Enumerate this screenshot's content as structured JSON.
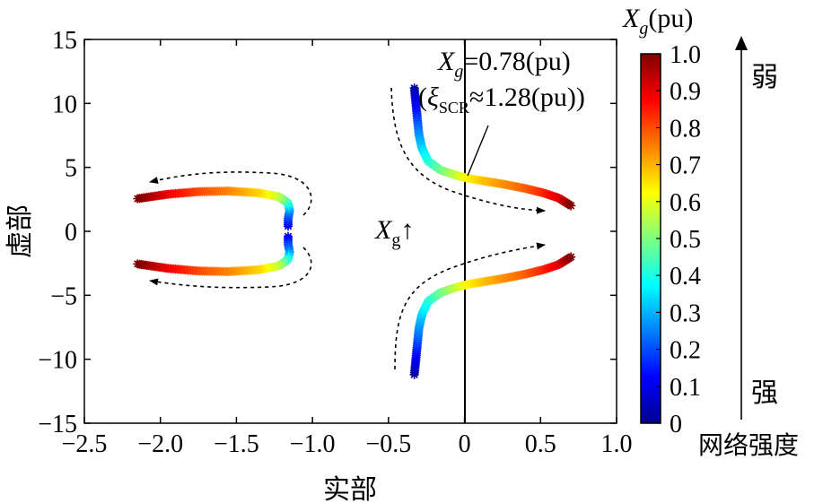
{
  "chart_data": {
    "type": "scatter",
    "xlabel": "实部",
    "ylabel": "虚部",
    "xlim": [
      -2.5,
      1.0
    ],
    "ylim": [
      -15,
      15
    ],
    "x_ticks": [
      {
        "v": -2.5,
        "label": "−2.5"
      },
      {
        "v": -2.0,
        "label": "−2.0"
      },
      {
        "v": -1.5,
        "label": "−1.5"
      },
      {
        "v": -1.0,
        "label": "−1.0"
      },
      {
        "v": -0.5,
        "label": "−0.5"
      },
      {
        "v": 0.0,
        "label": "0"
      },
      {
        "v": 0.5,
        "label": "0.5"
      },
      {
        "v": 1.0,
        "label": "1.0"
      }
    ],
    "y_ticks": [
      {
        "v": 15,
        "label": "15"
      },
      {
        "v": 10,
        "label": "10"
      },
      {
        "v": 5,
        "label": "5"
      },
      {
        "v": 0,
        "label": "0"
      },
      {
        "v": -5,
        "label": "−5"
      },
      {
        "v": -10,
        "label": "−10"
      },
      {
        "v": -15,
        "label": "−15"
      }
    ],
    "series": [
      {
        "name": "right-upper",
        "points": [
          [
            -0.33,
            11.2,
            0.02
          ],
          [
            -0.32,
            10.0,
            0.1
          ],
          [
            -0.31,
            8.8,
            0.18
          ],
          [
            -0.3,
            7.6,
            0.26
          ],
          [
            -0.28,
            6.5,
            0.33
          ],
          [
            -0.24,
            5.5,
            0.4
          ],
          [
            -0.16,
            4.8,
            0.48
          ],
          [
            -0.06,
            4.4,
            0.56
          ],
          [
            0.02,
            4.15,
            0.63
          ],
          [
            0.12,
            3.95,
            0.68
          ],
          [
            0.25,
            3.7,
            0.73
          ],
          [
            0.4,
            3.35,
            0.78
          ],
          [
            0.52,
            3.0,
            0.84
          ],
          [
            0.62,
            2.6,
            0.9
          ],
          [
            0.7,
            2.0,
            1.0
          ]
        ]
      },
      {
        "name": "right-lower",
        "points": [
          [
            -0.33,
            -11.2,
            0.02
          ],
          [
            -0.32,
            -10.0,
            0.1
          ],
          [
            -0.31,
            -8.8,
            0.18
          ],
          [
            -0.3,
            -7.6,
            0.26
          ],
          [
            -0.28,
            -6.5,
            0.33
          ],
          [
            -0.24,
            -5.5,
            0.4
          ],
          [
            -0.16,
            -4.8,
            0.48
          ],
          [
            -0.06,
            -4.4,
            0.56
          ],
          [
            0.02,
            -4.15,
            0.63
          ],
          [
            0.12,
            -3.95,
            0.68
          ],
          [
            0.25,
            -3.7,
            0.73
          ],
          [
            0.4,
            -3.35,
            0.78
          ],
          [
            0.52,
            -3.0,
            0.84
          ],
          [
            0.62,
            -2.6,
            0.9
          ],
          [
            0.7,
            -2.0,
            1.0
          ]
        ]
      },
      {
        "name": "left-upper",
        "points": [
          [
            -1.16,
            0.4,
            0.1
          ],
          [
            -1.16,
            1.0,
            0.18
          ],
          [
            -1.15,
            1.6,
            0.26
          ],
          [
            -1.16,
            2.2,
            0.4
          ],
          [
            -1.22,
            2.7,
            0.55
          ],
          [
            -1.35,
            3.0,
            0.66
          ],
          [
            -1.55,
            3.15,
            0.74
          ],
          [
            -1.75,
            3.1,
            0.8
          ],
          [
            -1.95,
            2.9,
            0.88
          ],
          [
            -2.15,
            2.55,
            1.0
          ]
        ]
      },
      {
        "name": "left-lower",
        "points": [
          [
            -1.16,
            -0.4,
            0.1
          ],
          [
            -1.16,
            -1.0,
            0.18
          ],
          [
            -1.15,
            -1.6,
            0.26
          ],
          [
            -1.16,
            -2.2,
            0.4
          ],
          [
            -1.22,
            -2.7,
            0.55
          ],
          [
            -1.35,
            -3.0,
            0.66
          ],
          [
            -1.55,
            -3.15,
            0.74
          ],
          [
            -1.75,
            -3.1,
            0.8
          ],
          [
            -1.95,
            -2.9,
            0.88
          ],
          [
            -2.15,
            -2.55,
            1.0
          ]
        ]
      }
    ],
    "colorbar": {
      "title_main": "X",
      "title_sub": "g",
      "title_unit": "(pu)",
      "range": [
        0,
        1.0
      ],
      "ticks": [
        {
          "v": 1.0,
          "label": "1.0"
        },
        {
          "v": 0.9,
          "label": "0.9"
        },
        {
          "v": 0.8,
          "label": "0.8"
        },
        {
          "v": 0.7,
          "label": "0.7"
        },
        {
          "v": 0.6,
          "label": "0.6"
        },
        {
          "v": 0.5,
          "label": "0.5"
        },
        {
          "v": 0.4,
          "label": "0.4"
        },
        {
          "v": 0.3,
          "label": "0.3"
        },
        {
          "v": 0.2,
          "label": "0.2"
        },
        {
          "v": 0.1,
          "label": "0.1"
        },
        {
          "v": 0.0,
          "label": "0"
        }
      ]
    },
    "annotations": {
      "xg_value_main": "X",
      "xg_value_sub": "g",
      "xg_value_text": "=0.78(pu)",
      "scr_open": "(",
      "scr_xi": "ξ",
      "scr_sub": "SCR",
      "scr_text": "≈1.28(pu))",
      "xg_arrow_main": "X",
      "xg_arrow_sub": "g",
      "xg_arrow_symbol": "↑",
      "weak_label": "弱",
      "strong_label": "强",
      "grid_strength_label": "网络强度"
    }
  }
}
